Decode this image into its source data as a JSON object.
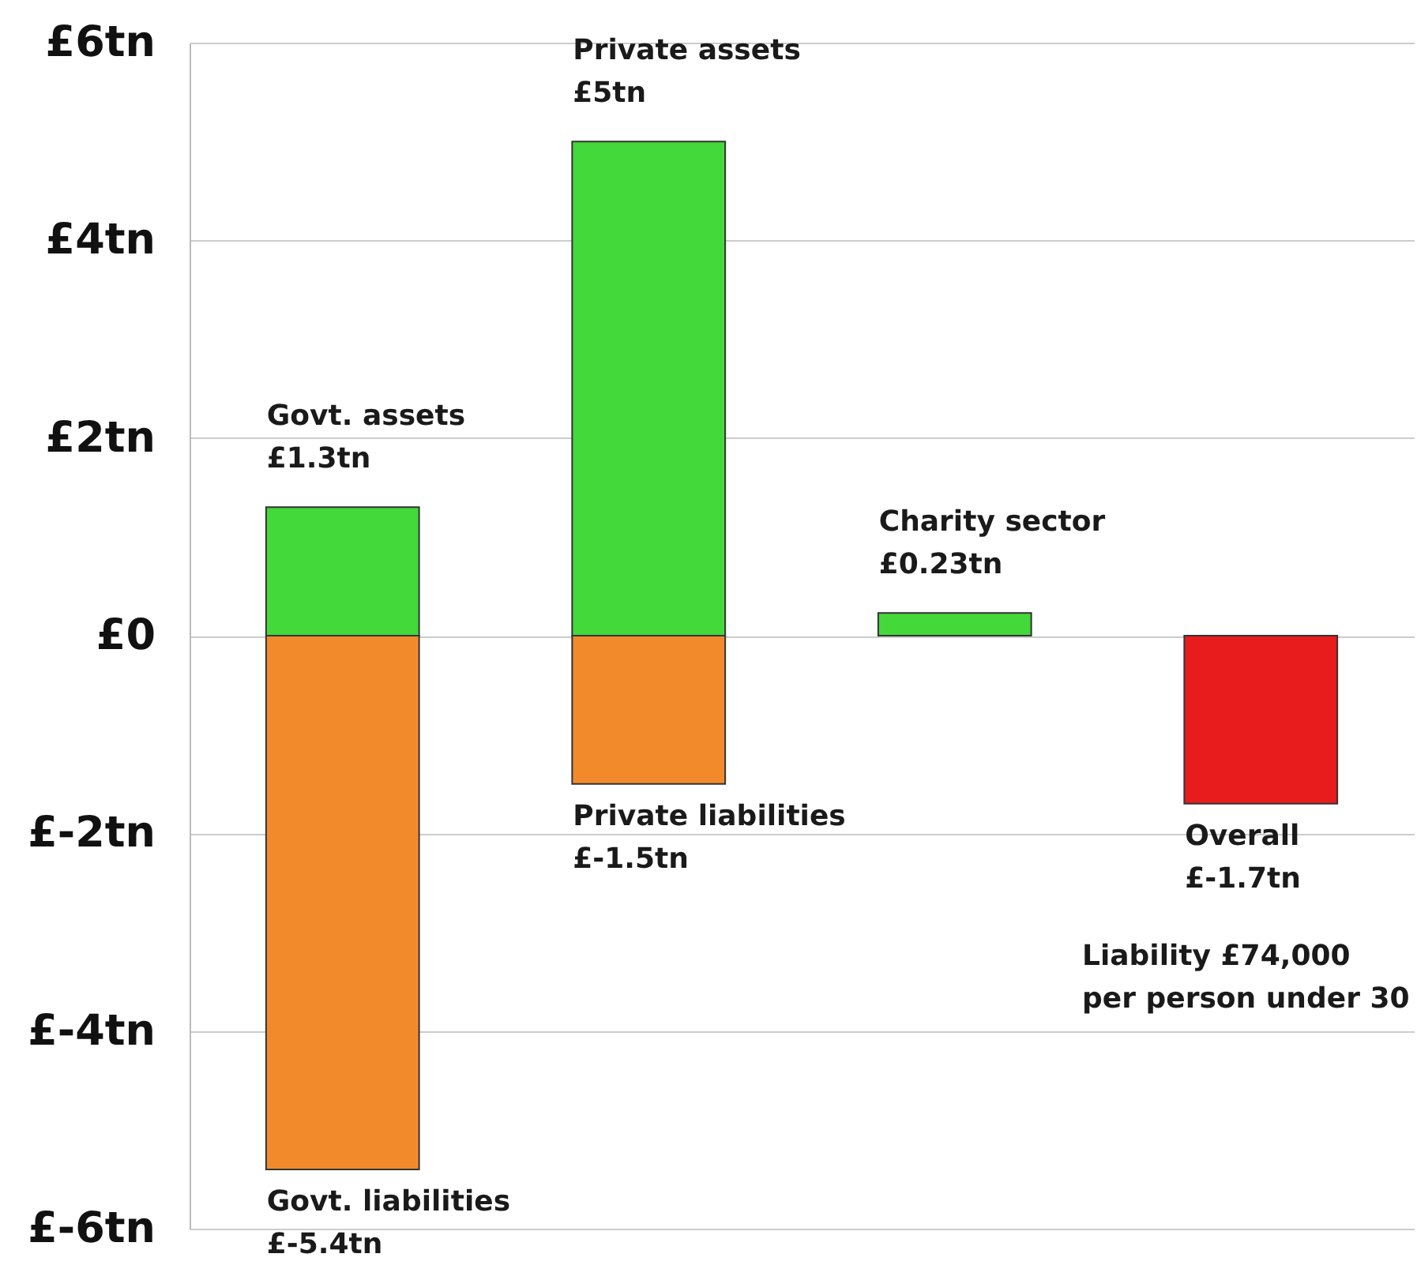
{
  "chart_data": {
    "type": "bar",
    "categories": [
      null,
      null,
      null,
      null
    ],
    "series": [
      {
        "color": "#44d93b",
        "values": [
          1.3,
          5,
          0.23,
          null
        ],
        "value_labels": [
          "Govt. assets\n£1.3tn",
          "Private assets\n£5tn",
          "Charity sector\n£0.23tn",
          null
        ]
      },
      {
        "color": "#f28a2c",
        "values": [
          -5.4,
          -1.5,
          null,
          null
        ],
        "value_labels": [
          "Govt. liabilities\n£-5.4tn",
          "Private liabilities\n£-1.5tn",
          null,
          null
        ]
      },
      {
        "color": "#e81c1c",
        "values": [
          null,
          null,
          null,
          -1.7
        ],
        "value_labels": [
          null,
          null,
          null,
          "Overall\n£-1.7tn"
        ]
      }
    ],
    "ylim": [
      -6,
      6
    ],
    "yticks": [
      {
        "value": 6,
        "label": "£6tn"
      },
      {
        "value": 4,
        "label": "£4tn"
      },
      {
        "value": 2,
        "label": "£2tn"
      },
      {
        "value": 0,
        "label": "£0"
      },
      {
        "value": -2,
        "label": "£-2tn"
      },
      {
        "value": -4,
        "label": "£-4tn"
      },
      {
        "value": -6,
        "label": "£-6tn"
      }
    ],
    "grid": "y",
    "tick_labels": "y",
    "stacked": true,
    "annotations": [
      "Liability £74,000\nper person under 30"
    ]
  }
}
